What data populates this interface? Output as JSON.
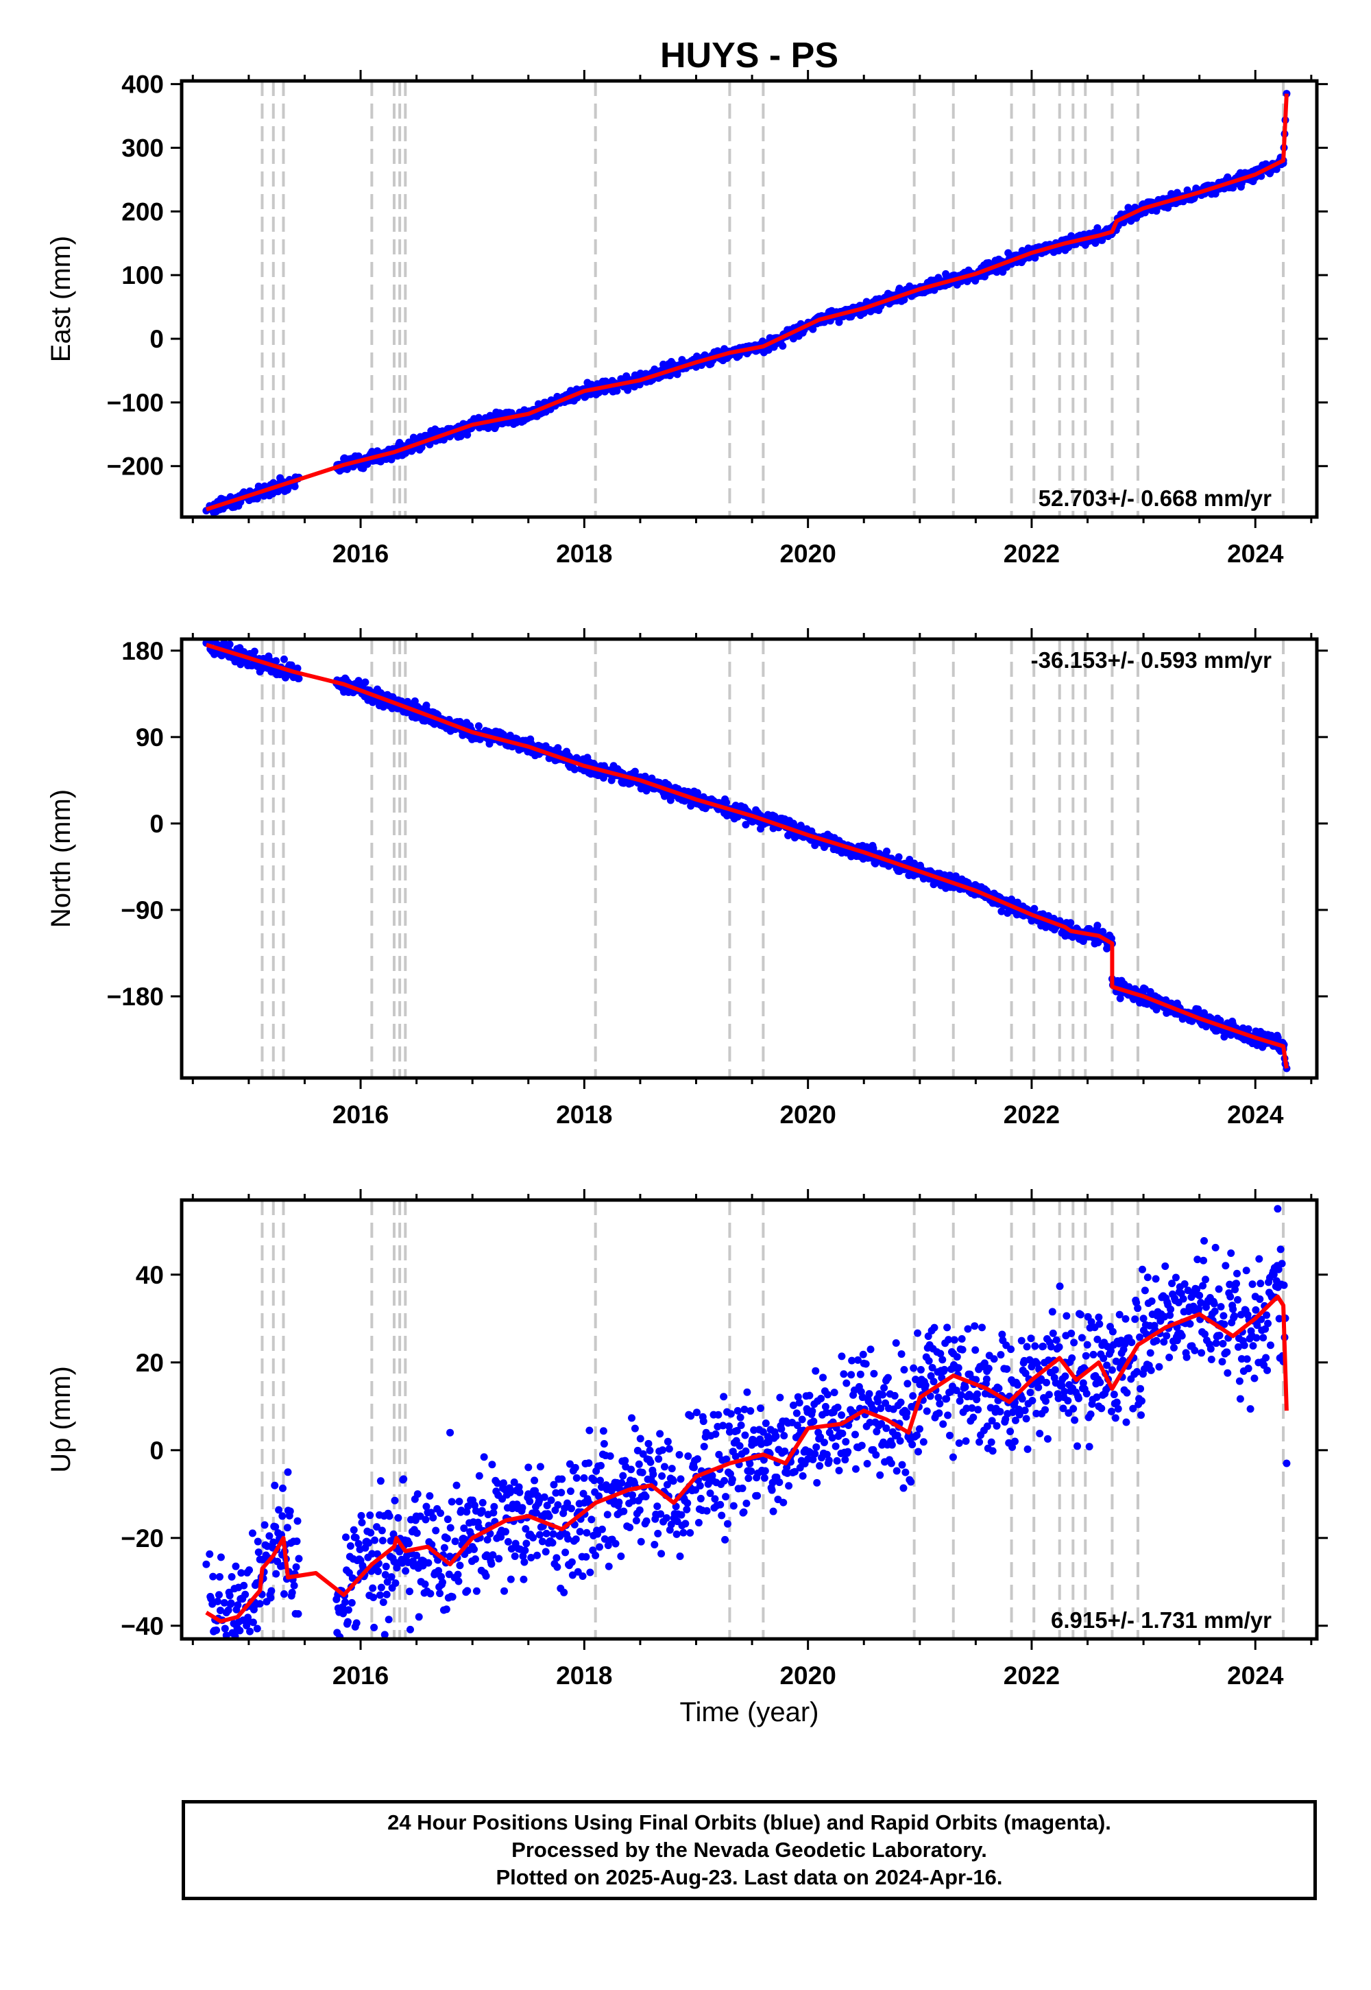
{
  "title": "HUYS - PS",
  "xlabel": "Time (year)",
  "chart_data": [
    {
      "type": "scatter",
      "panel": "east",
      "ylabel": "East (mm)",
      "ylim": [
        -280,
        405
      ],
      "xlim": [
        2014.4,
        2024.55
      ],
      "x_ticks": [
        2016,
        2018,
        2020,
        2022,
        2024
      ],
      "y_ticks": [
        -200,
        -100,
        0,
        100,
        200,
        300,
        400
      ],
      "y_tick_labels": [
        "−200",
        "−100",
        "0",
        "100",
        "200",
        "300",
        "400"
      ],
      "rate_label": "52.703+/- 0.668 mm/yr",
      "rate_position": "bottom-right",
      "series": [
        {
          "type": "scatter",
          "color": "#0000ff",
          "x": [
            2014.62,
            2014.8,
            2015.15,
            2015.3,
            2015.4,
            2015.85,
            2016.1,
            2016.3,
            2016.5,
            2017.0,
            2017.5,
            2018.0,
            2018.5,
            2019.0,
            2019.3,
            2019.6,
            2019.85,
            2020.1,
            2020.5,
            2021.0,
            2021.5,
            2022.0,
            2022.3,
            2022.6,
            2022.75,
            2023.0,
            2023.5,
            2024.0,
            2024.25,
            2024.28
          ],
          "y": [
            -270,
            -262,
            -240,
            -232,
            -225,
            -195,
            -182,
            -175,
            -165,
            -135,
            -115,
            -80,
            -60,
            -35,
            -20,
            -10,
            8,
            32,
            50,
            78,
            100,
            135,
            150,
            162,
            180,
            205,
            228,
            258,
            280,
            385
          ]
        },
        {
          "type": "line",
          "color": "#ff0000",
          "x": [
            2014.62,
            2015.85,
            2016.3,
            2017.0,
            2017.5,
            2018.0,
            2018.5,
            2019.0,
            2019.3,
            2019.6,
            2020.1,
            2020.5,
            2021.0,
            2021.5,
            2022.0,
            2022.3,
            2022.6,
            2022.72,
            2022.76,
            2023.0,
            2023.5,
            2024.0,
            2024.25,
            2024.25,
            2024.28
          ],
          "y": [
            -268,
            -198,
            -178,
            -135,
            -118,
            -82,
            -65,
            -37,
            -22,
            -12,
            30,
            48,
            78,
            102,
            135,
            150,
            162,
            168,
            185,
            205,
            230,
            258,
            280,
            280,
            385
          ]
        }
      ],
      "offset_lines_x": [
        2015.12,
        2015.22,
        2015.31,
        2016.1,
        2016.3,
        2016.35,
        2016.4,
        2018.1,
        2019.3,
        2019.6,
        2020.95,
        2021.3,
        2021.82,
        2022.02,
        2022.25,
        2022.37,
        2022.48,
        2022.72,
        2022.95,
        2024.25
      ]
    },
    {
      "type": "scatter",
      "panel": "north",
      "ylabel": "North (mm)",
      "ylim": [
        -265,
        192
      ],
      "xlim": [
        2014.4,
        2024.55
      ],
      "x_ticks": [
        2016,
        2018,
        2020,
        2022,
        2024
      ],
      "y_ticks": [
        -180,
        -90,
        0,
        90,
        180
      ],
      "y_tick_labels": [
        "−180",
        "−90",
        "0",
        "90",
        "180"
      ],
      "rate_label": "-36.153+/- 0.593 mm/yr",
      "rate_position": "top-right",
      "series": [
        {
          "type": "scatter",
          "color": "#0000ff",
          "x": [
            2014.62,
            2014.8,
            2015.15,
            2015.3,
            2015.4,
            2015.85,
            2016.1,
            2016.5,
            2017.0,
            2017.5,
            2018.0,
            2018.5,
            2019.0,
            2019.5,
            2020.0,
            2020.5,
            2021.0,
            2021.5,
            2022.0,
            2022.35,
            2022.6,
            2022.72,
            2022.78,
            2023.0,
            2023.5,
            2024.0,
            2024.25,
            2024.28
          ],
          "y": [
            188,
            180,
            165,
            160,
            155,
            145,
            135,
            115,
            95,
            80,
            60,
            45,
            25,
            8,
            -12,
            -30,
            -50,
            -70,
            -95,
            -110,
            -118,
            -125,
            -165,
            -180,
            -205,
            -225,
            -235,
            -255
          ]
        },
        {
          "type": "line",
          "color": "#ff0000",
          "x": [
            2014.62,
            2015.4,
            2015.85,
            2016.5,
            2017.0,
            2017.5,
            2018.0,
            2018.5,
            2019.0,
            2019.5,
            2020.0,
            2020.5,
            2021.0,
            2021.5,
            2022.0,
            2022.3,
            2022.35,
            2022.6,
            2022.72,
            2022.72,
            2023.0,
            2023.5,
            2024.0,
            2024.25,
            2024.25,
            2024.28
          ],
          "y": [
            186,
            158,
            145,
            117,
            95,
            80,
            60,
            45,
            25,
            8,
            -12,
            -30,
            -50,
            -70,
            -95,
            -108,
            -112,
            -117,
            -125,
            -170,
            -180,
            -203,
            -223,
            -232,
            -232,
            -255
          ]
        }
      ],
      "offset_lines_x": [
        2015.12,
        2015.22,
        2015.31,
        2016.1,
        2016.3,
        2016.35,
        2016.4,
        2018.1,
        2019.3,
        2019.6,
        2020.95,
        2021.3,
        2021.82,
        2022.02,
        2022.25,
        2022.37,
        2022.48,
        2022.72,
        2022.95,
        2024.25
      ]
    },
    {
      "type": "scatter",
      "panel": "up",
      "ylabel": "Up (mm)",
      "ylim": [
        -43,
        57
      ],
      "xlim": [
        2014.4,
        2024.55
      ],
      "x_ticks": [
        2016,
        2018,
        2020,
        2022,
        2024
      ],
      "y_ticks": [
        -40,
        -20,
        0,
        20,
        40
      ],
      "y_tick_labels": [
        "−40",
        "−20",
        "0",
        "20",
        "40"
      ],
      "rate_label": "6.915+/- 1.731 mm/yr",
      "rate_position": "bottom-right",
      "series": [
        {
          "type": "scatter",
          "color": "#0000ff",
          "x": [
            2014.62,
            2014.8,
            2015.1,
            2015.2,
            2015.3,
            2015.35,
            2015.8,
            2016.0,
            2016.3,
            2016.5,
            2016.8,
            2017.0,
            2017.5,
            2018.0,
            2018.5,
            2019.0,
            2019.5,
            2020.0,
            2020.3,
            2020.7,
            2021.0,
            2021.3,
            2021.6,
            2021.85,
            2022.0,
            2022.3,
            2022.6,
            2022.8,
            2023.0,
            2023.3,
            2023.6,
            2024.0,
            2024.2,
            2024.28
          ],
          "y": [
            -26,
            -37,
            -35,
            -25,
            -15,
            -5,
            -36,
            -28,
            -20,
            -24,
            4,
            -22,
            -10,
            -12,
            -5,
            -6,
            2,
            -2,
            8,
            5,
            15,
            22,
            18,
            2,
            15,
            20,
            10,
            25,
            30,
            28,
            30,
            35,
            55,
            -3
          ]
        },
        {
          "type": "line",
          "color": "#ff0000",
          "x": [
            2014.62,
            2014.75,
            2014.9,
            2015.1,
            2015.12,
            2015.22,
            2015.31,
            2015.35,
            2015.6,
            2015.85,
            2016.1,
            2016.3,
            2016.32,
            2016.4,
            2016.6,
            2016.8,
            2017.0,
            2017.3,
            2017.5,
            2017.8,
            2018.1,
            2018.4,
            2018.6,
            2018.8,
            2019.0,
            2019.3,
            2019.6,
            2019.8,
            2020.0,
            2020.3,
            2020.5,
            2020.7,
            2020.9,
            2021.0,
            2021.3,
            2021.6,
            2021.8,
            2022.0,
            2022.25,
            2022.4,
            2022.6,
            2022.72,
            2022.95,
            2023.2,
            2023.5,
            2023.8,
            2024.0,
            2024.2,
            2024.25,
            2024.28
          ],
          "y": [
            -37,
            -39,
            -38,
            -32,
            -27,
            -24,
            -20,
            -29,
            -28,
            -33,
            -26,
            -22,
            -20,
            -23,
            -22,
            -26,
            -20,
            -16,
            -15,
            -18,
            -12,
            -9,
            -8,
            -12,
            -6,
            -3,
            -1,
            -3,
            5,
            6,
            9,
            7,
            4,
            12,
            17,
            14,
            11,
            16,
            21,
            16,
            20,
            14,
            24,
            28,
            31,
            26,
            30,
            35,
            33,
            9
          ]
        }
      ],
      "offset_lines_x": [
        2015.12,
        2015.22,
        2015.31,
        2016.1,
        2016.3,
        2016.35,
        2016.4,
        2018.1,
        2019.3,
        2019.6,
        2020.95,
        2021.3,
        2021.82,
        2022.02,
        2022.25,
        2022.37,
        2022.48,
        2022.72,
        2022.95,
        2024.25
      ]
    }
  ],
  "footer": {
    "line1": "24 Hour Positions Using Final Orbits (blue) and Rapid Orbits (magenta).",
    "line2": "Processed by the Nevada Geodetic Laboratory.",
    "line3": "Plotted on 2025-Aug-23. Last data on 2024-Apr-16."
  }
}
